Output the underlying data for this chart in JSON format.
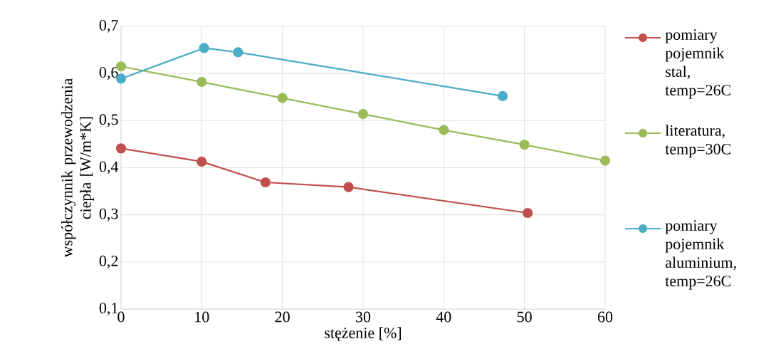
{
  "chart_data": {
    "type": "line",
    "xlabel": "stężenie [%]",
    "ylabel": "współczynnik przewodzenia ciepła [W/m*K]",
    "xlim": [
      0,
      60
    ],
    "xticks": [
      0,
      10,
      20,
      30,
      40,
      50,
      60
    ],
    "ylim": [
      0.1,
      0.7
    ],
    "yticks": [
      {
        "value": 0.1,
        "label": "0,1"
      },
      {
        "value": 0.2,
        "label": "0,2"
      },
      {
        "value": 0.3,
        "label": "0,3"
      },
      {
        "value": 0.4,
        "label": "0,4"
      },
      {
        "value": 0.5,
        "label": "0,5"
      },
      {
        "value": 0.6,
        "label": "0,6"
      },
      {
        "value": 0.7,
        "label": "0,7"
      }
    ],
    "grid": true,
    "legend": "right",
    "marker": "circle",
    "line_style": "solid",
    "series": [
      {
        "name": "pomiary pojemnik stal, temp=26C",
        "color": "#c0504d",
        "x": [
          0,
          10,
          17.9,
          28.2,
          50.4
        ],
        "values": [
          0.441,
          0.413,
          0.369,
          0.359,
          0.304
        ]
      },
      {
        "name": "literatura, temp=30C",
        "color": "#9bbb59",
        "x": [
          0,
          10,
          20,
          30,
          40,
          50,
          60
        ],
        "values": [
          0.615,
          0.582,
          0.548,
          0.514,
          0.48,
          0.449,
          0.415
        ]
      },
      {
        "name": "pomiary pojemnik aluminium, temp=26C",
        "color": "#4bacc6",
        "x": [
          0,
          10.3,
          14.5,
          47.3
        ],
        "values": [
          0.589,
          0.654,
          0.645,
          0.552
        ]
      }
    ]
  }
}
